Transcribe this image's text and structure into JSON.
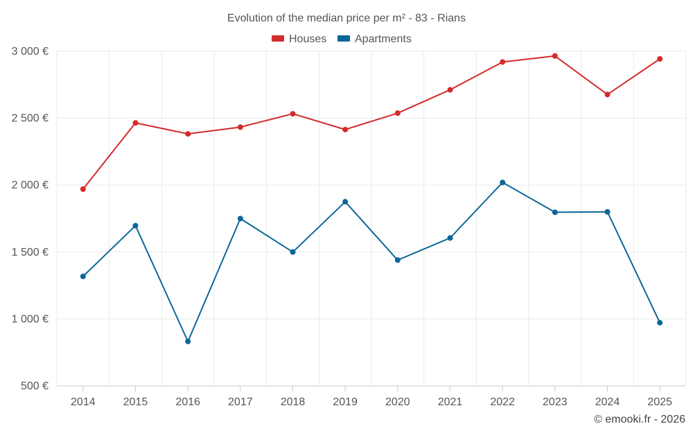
{
  "chart_data": {
    "type": "line",
    "title": "Evolution of the median price per m² - 83 - Rians",
    "categories": [
      "2014",
      "2015",
      "2016",
      "2017",
      "2018",
      "2019",
      "2020",
      "2021",
      "2022",
      "2023",
      "2024",
      "2025"
    ],
    "series": [
      {
        "name": "Houses",
        "color": "#d32a2a",
        "values": [
          1970,
          2465,
          2383,
          2433,
          2533,
          2415,
          2538,
          2712,
          2920,
          2965,
          2677,
          2943
        ]
      },
      {
        "name": "Apartments",
        "color": "#0b6699",
        "values": [
          1318,
          1697,
          832,
          1750,
          1500,
          1876,
          1440,
          1605,
          2020,
          1797,
          1800,
          972
        ]
      }
    ],
    "ylim": [
      500,
      3000
    ],
    "yticks": [
      500,
      1000,
      1500,
      2000,
      2500,
      3000
    ],
    "ytick_labels": [
      "500 €",
      "1 000 €",
      "1 500 €",
      "2 000 €",
      "2 500 €",
      "3 000 €"
    ],
    "xlabel": "",
    "ylabel": "",
    "legend_position": "top-center",
    "grid": true
  },
  "credit": "© emooki.fr - 2026"
}
